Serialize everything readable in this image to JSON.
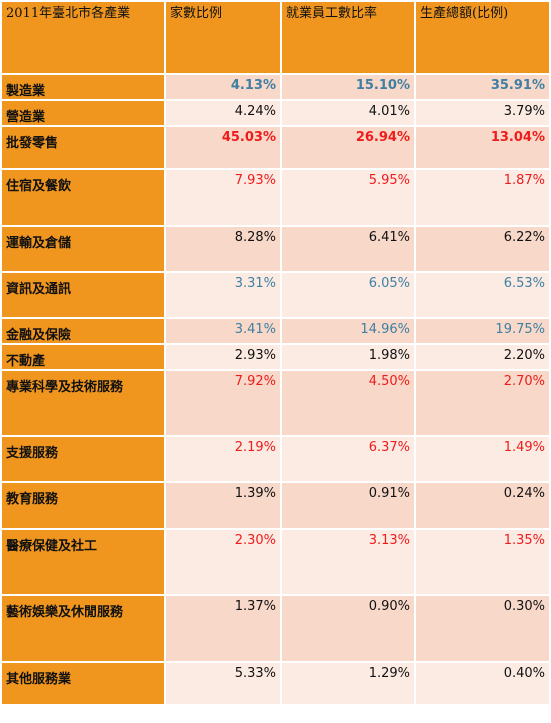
{
  "header": {
    "col0": "2011年臺北市各產業",
    "col1": "家數比例",
    "col2": "就業員工數比率",
    "col3": "生產總額(比例)"
  },
  "rows": [
    {
      "name": "製造業",
      "v1": "4.13%",
      "v2": "15.10%",
      "v3": "35.91%",
      "color": "blue",
      "bold": true
    },
    {
      "name": "營造業",
      "v1": "4.24%",
      "v2": "4.01%",
      "v3": "3.79%",
      "color": "black"
    },
    {
      "name": "批發零售",
      "v1": "45.03%",
      "v2": "26.94%",
      "v3": "13.04%",
      "color": "red",
      "bold": true
    },
    {
      "name": "住宿及餐飲",
      "v1": "7.93%",
      "v2": "5.95%",
      "v3": "1.87%",
      "color": "red"
    },
    {
      "name": "運輸及倉儲",
      "v1": "8.28%",
      "v2": "6.41%",
      "v3": "6.22%",
      "color": "black"
    },
    {
      "name": "資訊及通訊",
      "v1": "3.31%",
      "v2": "6.05%",
      "v3": "6.53%",
      "color": "blue"
    },
    {
      "name": "金融及保險",
      "v1": "3.41%",
      "v2": "14.96%",
      "v3": "19.75%",
      "color": "blue"
    },
    {
      "name": "不動產",
      "v1": "2.93%",
      "v2": "1.98%",
      "v3": "2.20%",
      "color": "black"
    },
    {
      "name": "專業科學及技術服務",
      "v1": "7.92%",
      "v2": "4.50%",
      "v3": "2.70%",
      "color": "red"
    },
    {
      "name": "支援服務",
      "v1": "2.19%",
      "v2": "6.37%",
      "v3": "1.49%",
      "color": "red"
    },
    {
      "name": "教育服務",
      "v1": "1.39%",
      "v2": "0.91%",
      "v3": "0.24%",
      "color": "black"
    },
    {
      "name": "醫療保健及社工",
      "v1": "2.30%",
      "v2": "3.13%",
      "v3": "1.35%",
      "color": "red"
    },
    {
      "name": "藝術娛樂及休閒服務",
      "v1": "1.37%",
      "v2": "0.90%",
      "v3": "0.30%",
      "color": "black"
    },
    {
      "name": "其他服務業",
      "v1": "5.33%",
      "v2": "1.29%",
      "v3": "0.40%",
      "color": "black"
    }
  ],
  "colors": {
    "header_bg": "#f0961e",
    "name_bg": "#f0961e",
    "row_odd_bg": "#f8d8c8",
    "row_even_bg": "#fcebe3",
    "red": "#ee1c1c",
    "blue": "#3f7fa3",
    "black": "#111111"
  }
}
